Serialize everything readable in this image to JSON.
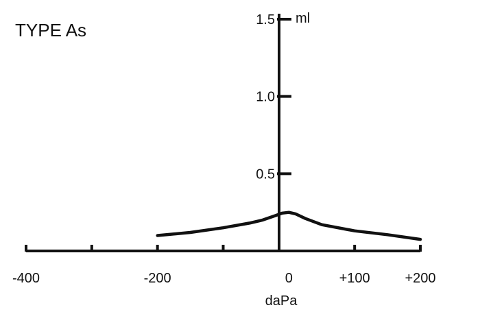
{
  "chart_data": {
    "type": "line",
    "title": "TYPE As",
    "xlabel": "daPa",
    "ylabel": "",
    "y_unit": "ml",
    "xlim": [
      -400,
      200
    ],
    "ylim": [
      0,
      1.5
    ],
    "x_ticks": [
      -400,
      -300,
      -200,
      -100,
      0,
      100,
      200
    ],
    "x_tick_labels": [
      "-400",
      "",
      "-200",
      "",
      "0",
      "+100",
      "+200"
    ],
    "y_ticks": [
      0.5,
      1.0,
      1.5
    ],
    "y_tick_labels": [
      "0.5",
      "1.0",
      "1.5"
    ],
    "grid": false,
    "legend": "none",
    "line_color": "#111111",
    "series": [
      {
        "x": [
          -200,
          -150,
          -100,
          -60,
          -40,
          -20,
          -10,
          0,
          10,
          25,
          50,
          100,
          150,
          200
        ],
        "values": [
          0.1,
          0.12,
          0.15,
          0.18,
          0.2,
          0.23,
          0.245,
          0.25,
          0.24,
          0.21,
          0.17,
          0.13,
          0.105,
          0.075
        ]
      }
    ]
  }
}
